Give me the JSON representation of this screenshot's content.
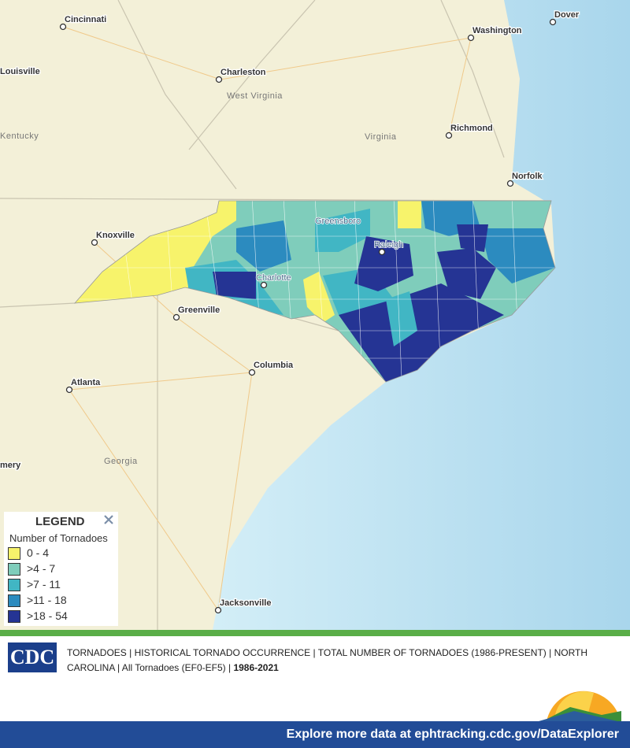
{
  "map": {
    "cities": [
      "Cincinnati",
      "Louisville",
      "Charleston",
      "Washington",
      "Dover",
      "Richmond",
      "Norfolk",
      "Knoxville",
      "Greenville",
      "Columbia",
      "Atlanta",
      "Jacksonville",
      "mery",
      "Greensboro",
      "Raleigh",
      "Charlotte"
    ],
    "states": [
      "West Virginia",
      "Kentucky",
      "Virginia",
      "Georgia"
    ]
  },
  "legend": {
    "title": "LEGEND",
    "subtitle": "Number of Tornadoes",
    "items": [
      {
        "label": "0 - 4",
        "color": "#f7f36b"
      },
      {
        "label": ">4 - 7",
        "color": "#7fcdbb"
      },
      {
        "label": ">7 - 11",
        "color": "#41b6c4"
      },
      {
        "label": ">11 - 18",
        "color": "#2c8bbf"
      },
      {
        "label": ">18 - 54",
        "color": "#253494"
      }
    ]
  },
  "footer": {
    "logo": "CDC",
    "description": "TORNADOES | HISTORICAL TORNADO OCCURRENCE | TOTAL NUMBER OF TORNADOES (1986-PRESENT) | NORTH CAROLINA | All Tornadoes (EF0-EF5) | ",
    "years": "1986-2021",
    "link": "Explore more data at ephtracking.cdc.gov/DataExplorer"
  }
}
